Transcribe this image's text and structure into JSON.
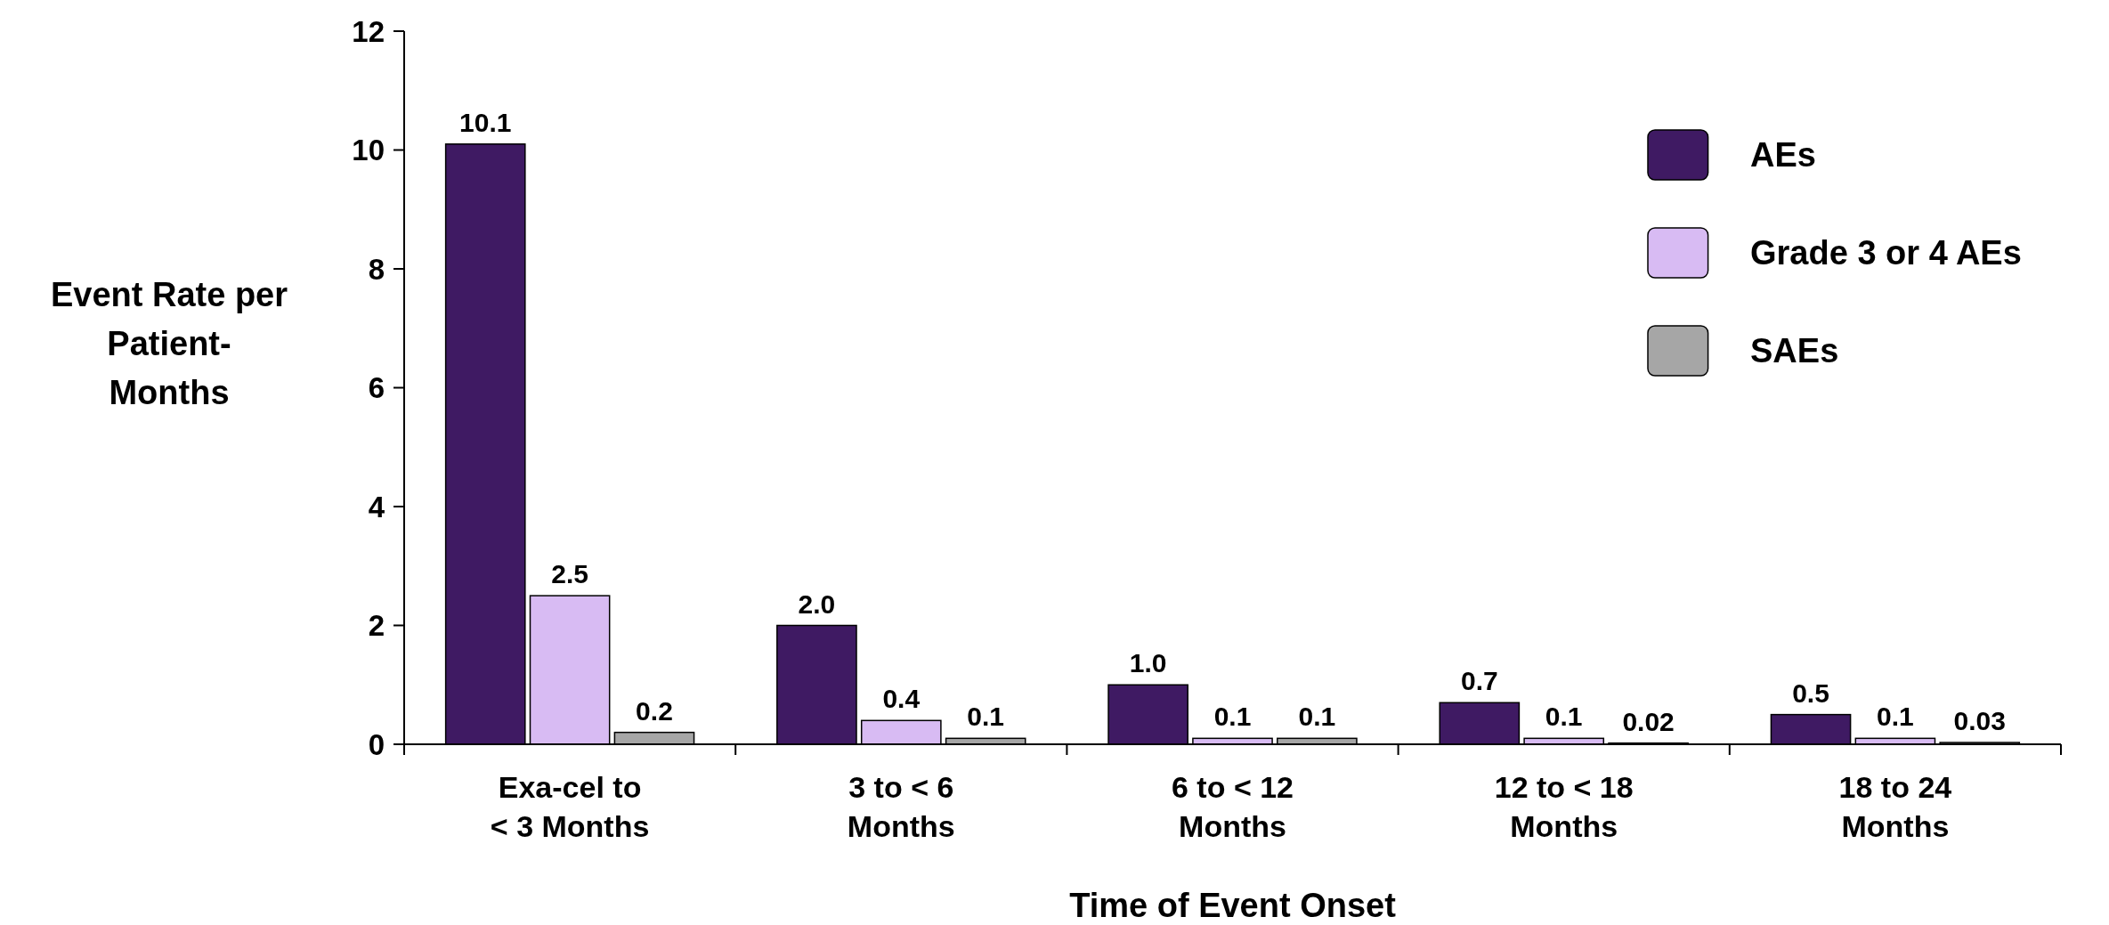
{
  "chart_data": {
    "type": "bar",
    "xlabel": "Time of Event Onset",
    "ylabel": "Event Rate per\nPatient-\nMonths",
    "categories": [
      "Exa-cel to\n< 3 Months",
      "3 to < 6\nMonths",
      "6 to < 12\nMonths",
      "12 to < 18\nMonths",
      "18 to 24\nMonths"
    ],
    "series": [
      {
        "name": "AEs",
        "color": "#3f1a63",
        "values": [
          10.1,
          2.0,
          1.0,
          0.7,
          0.5
        ],
        "value_labels": [
          "10.1",
          "2.0",
          "1.0",
          "0.7",
          "0.5"
        ]
      },
      {
        "name": "Grade 3 or 4 AEs",
        "color": "#d8bbf3",
        "values": [
          2.5,
          0.4,
          0.1,
          0.1,
          0.1
        ],
        "value_labels": [
          "2.5",
          "0.4",
          "0.1",
          "0.1",
          "0.1"
        ]
      },
      {
        "name": "SAEs",
        "color": "#a6a6a6",
        "values": [
          0.2,
          0.1,
          0.1,
          0.02,
          0.03
        ],
        "value_labels": [
          "0.2",
          "0.1",
          "0.1",
          "0.02",
          "0.03"
        ]
      }
    ],
    "ylim": [
      0,
      12
    ],
    "yticks": [
      0,
      2,
      4,
      6,
      8,
      10,
      12
    ],
    "legend": "top right"
  }
}
